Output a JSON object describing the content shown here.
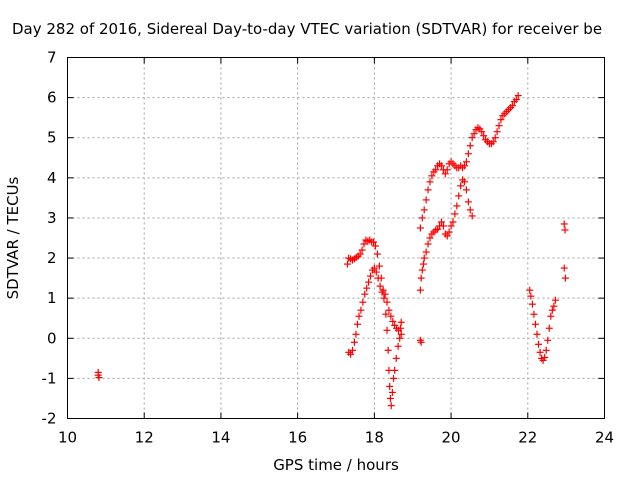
{
  "chart_data": {
    "type": "scatter",
    "title": "Day 282 of 2016, Sidereal Day-to-day VTEC variation (SDTVAR) for receiver be",
    "xlabel": "GPS time / hours",
    "ylabel": "SDTVAR / TECUs",
    "xlim": [
      10,
      24
    ],
    "ylim": [
      -2,
      7
    ],
    "xticks": [
      "10",
      "12",
      "14",
      "16",
      "18",
      "20",
      "22",
      "24"
    ],
    "yticks": [
      "-2",
      "-1",
      "0",
      "1",
      "2",
      "3",
      "4",
      "5",
      "6",
      "7"
    ],
    "grid": true,
    "marker": "plus",
    "color": "#ff0000",
    "points": [
      [
        10.8,
        -0.85
      ],
      [
        10.8,
        -0.92
      ],
      [
        10.82,
        -0.98
      ],
      [
        17.3,
        1.85
      ],
      [
        17.33,
        2.0
      ],
      [
        17.38,
        1.98
      ],
      [
        17.43,
        1.95
      ],
      [
        17.48,
        1.98
      ],
      [
        17.53,
        2.02
      ],
      [
        17.58,
        2.05
      ],
      [
        17.63,
        2.1
      ],
      [
        17.68,
        2.2
      ],
      [
        17.73,
        2.35
      ],
      [
        17.78,
        2.45
      ],
      [
        17.83,
        2.42
      ],
      [
        17.88,
        2.45
      ],
      [
        17.93,
        2.4
      ],
      [
        17.98,
        2.4
      ],
      [
        18.03,
        2.3
      ],
      [
        18.08,
        2.1
      ],
      [
        18.13,
        1.8
      ],
      [
        18.18,
        1.5
      ],
      [
        18.23,
        1.2
      ],
      [
        18.28,
        1.1
      ],
      [
        18.33,
        0.9
      ],
      [
        18.38,
        0.7
      ],
      [
        18.43,
        0.55
      ],
      [
        18.48,
        0.42
      ],
      [
        18.53,
        0.32
      ],
      [
        18.58,
        0.25
      ],
      [
        18.63,
        0.2
      ],
      [
        18.68,
        0.25
      ],
      [
        18.7,
        0.4
      ],
      [
        17.33,
        -0.35
      ],
      [
        17.38,
        -0.4
      ],
      [
        17.43,
        -0.3
      ],
      [
        17.48,
        -0.1
      ],
      [
        17.52,
        0.1
      ],
      [
        17.56,
        0.35
      ],
      [
        17.6,
        0.55
      ],
      [
        17.65,
        0.7
      ],
      [
        17.7,
        0.9
      ],
      [
        17.75,
        1.1
      ],
      [
        17.8,
        1.25
      ],
      [
        17.85,
        1.4
      ],
      [
        17.9,
        1.55
      ],
      [
        17.95,
        1.7
      ],
      [
        18.0,
        1.75
      ],
      [
        18.05,
        1.65
      ],
      [
        18.1,
        1.5
      ],
      [
        18.15,
        1.3
      ],
      [
        18.2,
        1.15
      ],
      [
        18.25,
        1.0
      ],
      [
        18.3,
        0.6
      ],
      [
        18.33,
        0.2
      ],
      [
        18.36,
        -0.3
      ],
      [
        18.38,
        -0.8
      ],
      [
        18.4,
        -1.2
      ],
      [
        18.42,
        -1.5
      ],
      [
        18.44,
        -1.68
      ],
      [
        18.47,
        -1.35
      ],
      [
        18.5,
        -1.0
      ],
      [
        18.53,
        -0.8
      ],
      [
        18.57,
        -0.5
      ],
      [
        18.62,
        -0.2
      ],
      [
        18.66,
        0.0
      ],
      [
        18.7,
        0.1
      ],
      [
        19.2,
        -0.05
      ],
      [
        19.22,
        -0.1
      ],
      [
        19.2,
        1.2
      ],
      [
        19.22,
        1.5
      ],
      [
        19.25,
        1.7
      ],
      [
        19.28,
        1.85
      ],
      [
        19.3,
        2.0
      ],
      [
        19.35,
        2.15
      ],
      [
        19.4,
        2.35
      ],
      [
        19.45,
        2.5
      ],
      [
        19.5,
        2.6
      ],
      [
        19.55,
        2.65
      ],
      [
        19.6,
        2.7
      ],
      [
        19.65,
        2.72
      ],
      [
        19.7,
        2.8
      ],
      [
        19.75,
        2.9
      ],
      [
        19.8,
        2.8
      ],
      [
        19.85,
        2.6
      ],
      [
        19.9,
        2.55
      ],
      [
        19.95,
        2.65
      ],
      [
        20.0,
        2.8
      ],
      [
        20.05,
        2.9
      ],
      [
        20.1,
        3.1
      ],
      [
        20.15,
        3.3
      ],
      [
        20.2,
        3.55
      ],
      [
        20.25,
        3.8
      ],
      [
        20.3,
        3.95
      ],
      [
        20.35,
        3.9
      ],
      [
        20.4,
        3.7
      ],
      [
        20.45,
        3.4
      ],
      [
        20.5,
        3.2
      ],
      [
        20.55,
        3.05
      ],
      [
        19.2,
        2.75
      ],
      [
        19.25,
        3.0
      ],
      [
        19.3,
        3.2
      ],
      [
        19.35,
        3.45
      ],
      [
        19.4,
        3.7
      ],
      [
        19.45,
        3.9
      ],
      [
        19.5,
        4.05
      ],
      [
        19.55,
        4.15
      ],
      [
        19.6,
        4.2
      ],
      [
        19.65,
        4.3
      ],
      [
        19.7,
        4.35
      ],
      [
        19.75,
        4.3
      ],
      [
        19.8,
        4.2
      ],
      [
        19.85,
        4.1
      ],
      [
        19.9,
        4.2
      ],
      [
        19.95,
        4.35
      ],
      [
        20.0,
        4.4
      ],
      [
        20.05,
        4.35
      ],
      [
        20.1,
        4.3
      ],
      [
        20.15,
        4.25
      ],
      [
        20.2,
        4.25
      ],
      [
        20.25,
        4.3
      ],
      [
        20.3,
        4.25
      ],
      [
        20.35,
        4.3
      ],
      [
        20.4,
        4.4
      ],
      [
        20.45,
        4.6
      ],
      [
        20.5,
        4.8
      ],
      [
        20.55,
        5.0
      ],
      [
        20.6,
        5.1
      ],
      [
        20.65,
        5.2
      ],
      [
        20.7,
        5.25
      ],
      [
        20.75,
        5.22
      ],
      [
        20.8,
        5.15
      ],
      [
        20.85,
        5.05
      ],
      [
        20.9,
        4.95
      ],
      [
        20.95,
        4.9
      ],
      [
        21.0,
        4.85
      ],
      [
        21.05,
        4.85
      ],
      [
        21.1,
        4.9
      ],
      [
        21.15,
        5.0
      ],
      [
        21.2,
        5.15
      ],
      [
        21.25,
        5.3
      ],
      [
        21.3,
        5.45
      ],
      [
        21.35,
        5.55
      ],
      [
        21.4,
        5.6
      ],
      [
        21.45,
        5.65
      ],
      [
        21.5,
        5.7
      ],
      [
        21.55,
        5.75
      ],
      [
        21.6,
        5.8
      ],
      [
        21.65,
        5.9
      ],
      [
        21.7,
        5.95
      ],
      [
        21.75,
        6.05
      ],
      [
        22.05,
        1.2
      ],
      [
        22.08,
        1.05
      ],
      [
        22.12,
        0.85
      ],
      [
        22.16,
        0.6
      ],
      [
        22.2,
        0.35
      ],
      [
        22.24,
        0.1
      ],
      [
        22.28,
        -0.15
      ],
      [
        22.32,
        -0.35
      ],
      [
        22.36,
        -0.5
      ],
      [
        22.4,
        -0.55
      ],
      [
        22.44,
        -0.48
      ],
      [
        22.48,
        -0.3
      ],
      [
        22.52,
        -0.05
      ],
      [
        22.56,
        0.25
      ],
      [
        22.6,
        0.55
      ],
      [
        22.64,
        0.7
      ],
      [
        22.68,
        0.8
      ],
      [
        22.72,
        0.95
      ],
      [
        22.95,
        2.85
      ],
      [
        22.97,
        2.7
      ],
      [
        22.95,
        1.75
      ],
      [
        22.98,
        1.5
      ]
    ]
  }
}
